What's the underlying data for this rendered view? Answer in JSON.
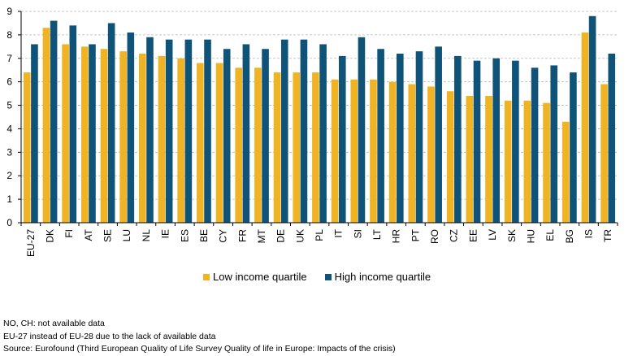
{
  "chart_data": {
    "type": "bar",
    "categories": [
      "EU-27",
      "DK",
      "FI",
      "AT",
      "SE",
      "LU",
      "NL",
      "IE",
      "ES",
      "BE",
      "CY",
      "FR",
      "MT",
      "DE",
      "UK",
      "PL",
      "IT",
      "SI",
      "LT",
      "HR",
      "PT",
      "RO",
      "CZ",
      "EE",
      "LV",
      "SK",
      "HU",
      "EL",
      "BG",
      "IS",
      "TR"
    ],
    "series": [
      {
        "name": "Low income quartile",
        "color": "#f0b323",
        "values": [
          6.4,
          8.3,
          7.6,
          7.5,
          7.4,
          7.3,
          7.2,
          7.1,
          7.0,
          6.8,
          6.8,
          6.6,
          6.6,
          6.4,
          6.4,
          6.4,
          6.1,
          6.1,
          6.1,
          6.0,
          5.9,
          5.8,
          5.6,
          5.4,
          5.4,
          5.2,
          5.2,
          5.1,
          4.3,
          8.1,
          5.9
        ]
      },
      {
        "name": "High income quartile",
        "color": "#0f5478",
        "values": [
          7.6,
          8.6,
          8.4,
          7.6,
          8.5,
          8.1,
          7.9,
          7.8,
          7.8,
          7.8,
          7.4,
          7.6,
          7.4,
          7.8,
          7.8,
          7.6,
          7.1,
          7.9,
          7.4,
          7.2,
          7.3,
          7.5,
          7.1,
          6.9,
          7.0,
          6.9,
          6.6,
          6.7,
          6.4,
          8.8,
          7.2
        ]
      }
    ],
    "ylim": [
      0,
      9
    ],
    "yticks": [
      0,
      1,
      2,
      3,
      4,
      5,
      6,
      7,
      8,
      9
    ],
    "grid": true,
    "legend": "bottom-center"
  },
  "notes": [
    "NO, CH: not available data",
    "EU-27 instead of EU-28 due to the lack of available data",
    "Source: Eurofound (Third European Quality of Life Survey Quality of life in Europe: Impacts of the crisis)"
  ]
}
